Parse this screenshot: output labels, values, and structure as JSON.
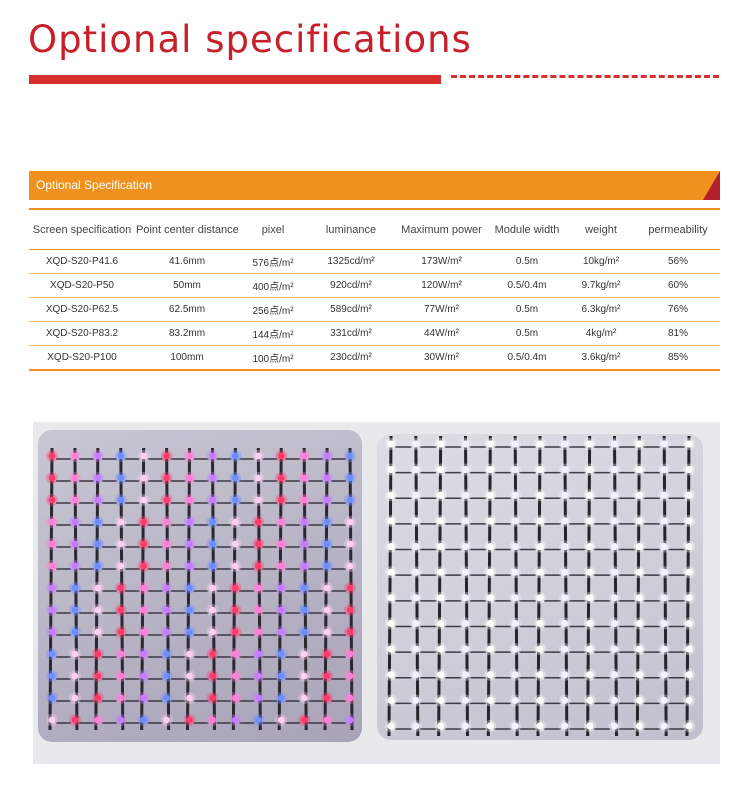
{
  "header": {
    "title": "Optional specifications"
  },
  "spec_section": {
    "label": "Optional Specification",
    "columns": [
      "Screen specification",
      "Point center distance",
      "pixel",
      "luminance",
      "Maximum power",
      "Module width",
      "weight",
      "permeability"
    ],
    "rows": [
      [
        "XQD-S20-P41.6",
        "41.6mm",
        "576点/m²",
        "1325cd/m²",
        "173W/m²",
        "0.5m",
        "10kg/m²",
        "56%"
      ],
      [
        "XQD-S20-P50",
        "50mm",
        "400点/m²",
        "920cd/m²",
        "120W/m²",
        "0.5/0.4m",
        "9.7kg/m²",
        "60%"
      ],
      [
        "XQD-S20-P62.5",
        "62.5mm",
        "256点/m²",
        "589cd/m²",
        "77W/m²",
        "0.5m",
        "6.3kg/m²",
        "76%"
      ],
      [
        "XQD-S20-P83.2",
        "83.2mm",
        "144点/m²",
        "331cd/m²",
        "44W/m²",
        "0.5m",
        "4kg/m²",
        "81%"
      ],
      [
        "XQD-S20-P100",
        "100mm",
        "100点/m²",
        "230cd/m²",
        "30W/m²",
        "0.5/0.4m",
        "3.6kg/m²",
        "85%"
      ]
    ]
  },
  "colors": {
    "title_red": "#c8202a",
    "accent_orange": "#f0901e",
    "corner_red": "#b2202a"
  },
  "photos": {
    "left": {
      "subject": "RGB LED mesh screen",
      "palette": [
        "#ff3a6e",
        "#ff7fd8",
        "#c77bff",
        "#6f8dff",
        "#ffd0f4"
      ]
    },
    "right": {
      "subject": "white LED mesh screen",
      "palette": [
        "#ffffff",
        "#f3f1ff"
      ]
    }
  }
}
